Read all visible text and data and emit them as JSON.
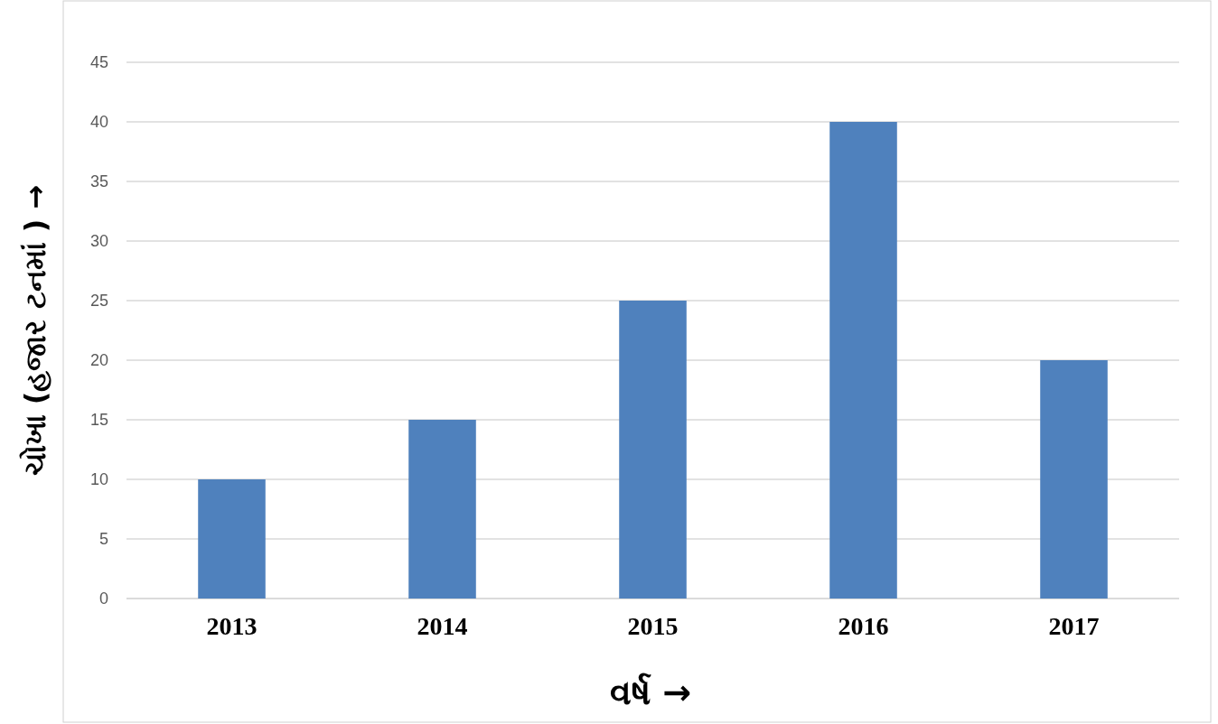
{
  "chart_data": {
    "type": "bar",
    "categories": [
      "2013",
      "2014",
      "2015",
      "2016",
      "2017"
    ],
    "values": [
      10,
      15,
      25,
      40,
      20
    ],
    "color": "#4f81bd",
    "xlabel": "વર્ષ →",
    "ylabel": "ચોખા (હજાર ટનમાં ) →",
    "ylim": [
      0,
      45
    ],
    "yticks": [
      0,
      5,
      10,
      15,
      20,
      25,
      30,
      35,
      40,
      45
    ],
    "grid": "y"
  }
}
